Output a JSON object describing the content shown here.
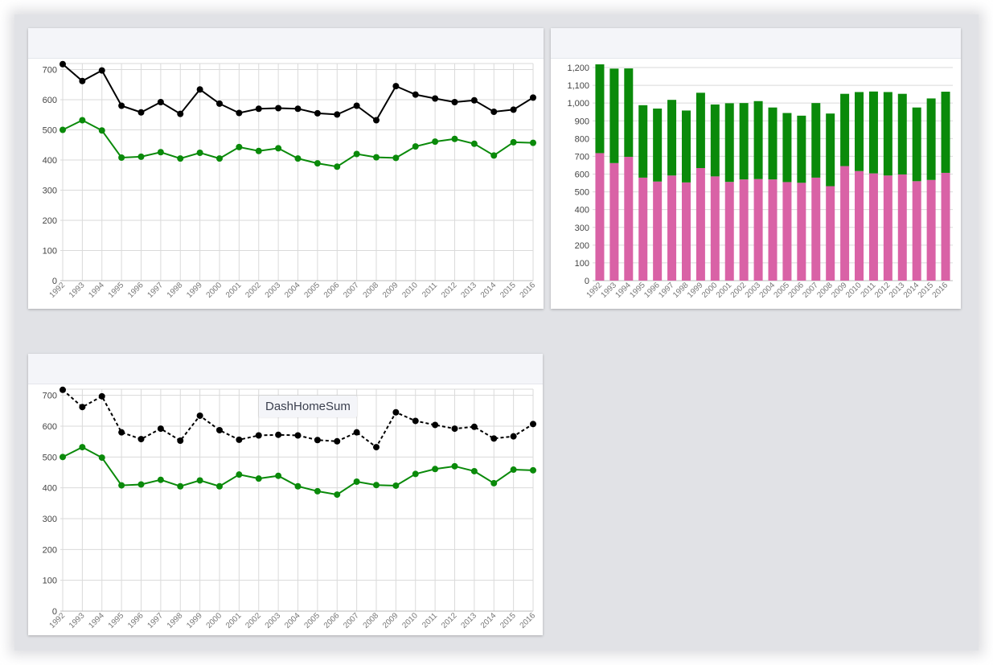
{
  "colors": {
    "total": "#000000",
    "green": "#0a8a0a",
    "pink": "#d962a6",
    "grid": "#dadada",
    "tick_text": "#444444"
  },
  "tooltip": {
    "text": "DashHomeSum"
  },
  "chart_data": [
    {
      "type": "line",
      "categories": [
        "1992",
        "1993",
        "1994",
        "1995",
        "1996",
        "1997",
        "1998",
        "1999",
        "2000",
        "2001",
        "2002",
        "2003",
        "2004",
        "2005",
        "2006",
        "2007",
        "2008",
        "2009",
        "2010",
        "2011",
        "2012",
        "2013",
        "2014",
        "2015",
        "2016"
      ],
      "ylim": [
        0,
        720
      ],
      "yticks": [
        0,
        100,
        200,
        300,
        400,
        500,
        600,
        700
      ],
      "grid": true,
      "series": [
        {
          "values": [
            718,
            662,
            697,
            580,
            558,
            592,
            553,
            634,
            587,
            556,
            570,
            572,
            570,
            555,
            551,
            580,
            532,
            645,
            617,
            604,
            592,
            598,
            560,
            567,
            607
          ],
          "color": "#000000",
          "dash": false
        },
        {
          "values": [
            500,
            532,
            498,
            408,
            411,
            426,
            405,
            424,
            405,
            443,
            430,
            439,
            405,
            389,
            378,
            420,
            409,
            407,
            445,
            461,
            470,
            454,
            415,
            459,
            457
          ],
          "color": "#0a8a0a",
          "dash": false
        }
      ]
    },
    {
      "type": "bar",
      "stacked": true,
      "categories": [
        "1992",
        "1993",
        "1994",
        "1995",
        "1996",
        "1997",
        "1998",
        "1999",
        "2000",
        "2001",
        "2002",
        "2003",
        "2004",
        "2005",
        "2006",
        "2007",
        "2008",
        "2009",
        "2010",
        "2011",
        "2012",
        "2013",
        "2014",
        "2015",
        "2016"
      ],
      "ylim": [
        0,
        1200
      ],
      "yticks": [
        0,
        100,
        200,
        300,
        400,
        500,
        600,
        700,
        800,
        900,
        1000,
        1100,
        1200
      ],
      "ytick_labels": [
        "0",
        "100",
        "200",
        "300",
        "400",
        "500",
        "600",
        "700",
        "800",
        "900",
        "1,000",
        "1,100",
        "1,200"
      ],
      "grid": true,
      "series": [
        {
          "values": [
            718,
            662,
            697,
            580,
            558,
            592,
            553,
            634,
            587,
            556,
            570,
            572,
            570,
            555,
            551,
            580,
            532,
            645,
            617,
            604,
            592,
            598,
            560,
            567,
            607
          ],
          "color": "#d962a6"
        },
        {
          "values": [
            500,
            532,
            498,
            408,
            411,
            426,
            405,
            424,
            405,
            443,
            430,
            439,
            405,
            389,
            378,
            420,
            409,
            407,
            445,
            461,
            470,
            454,
            415,
            459,
            457
          ],
          "color": "#0a8a0a"
        }
      ]
    },
    {
      "type": "line",
      "categories": [
        "1992",
        "1993",
        "1994",
        "1995",
        "1996",
        "1997",
        "1998",
        "1999",
        "2000",
        "2001",
        "2002",
        "2003",
        "2004",
        "2005",
        "2006",
        "2007",
        "2008",
        "2009",
        "2010",
        "2011",
        "2012",
        "2013",
        "2014",
        "2015",
        "2016"
      ],
      "ylim": [
        0,
        720
      ],
      "yticks": [
        0,
        100,
        200,
        300,
        400,
        500,
        600,
        700
      ],
      "grid": true,
      "series": [
        {
          "values": [
            718,
            662,
            697,
            580,
            558,
            592,
            553,
            634,
            587,
            556,
            570,
            572,
            570,
            555,
            551,
            580,
            532,
            645,
            617,
            604,
            592,
            598,
            560,
            567,
            607
          ],
          "color": "#000000",
          "dash": true
        },
        {
          "values": [
            500,
            532,
            498,
            408,
            411,
            426,
            405,
            424,
            405,
            443,
            430,
            439,
            405,
            389,
            378,
            420,
            409,
            407,
            445,
            461,
            470,
            454,
            415,
            459,
            457
          ],
          "color": "#0a8a0a",
          "dash": false
        }
      ]
    }
  ]
}
